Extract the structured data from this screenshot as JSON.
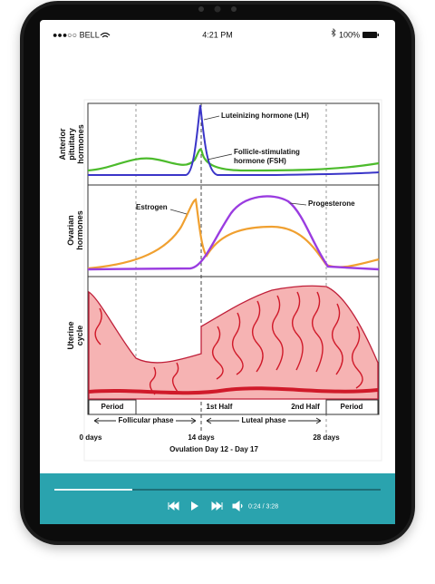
{
  "status_bar": {
    "carrier": "●●●○○ BELL",
    "time": "4:21 PM",
    "battery": "100%"
  },
  "diagram": {
    "row_labels": [
      [
        "Anterior",
        "pituitary",
        "hormones"
      ],
      [
        "Ovarian",
        "hormones"
      ],
      [
        "Uterine",
        "cycle"
      ]
    ],
    "lh_label": "Luteinizing hormone (LH)",
    "fsh_label": [
      "Follicle-stimulating",
      "hormone (FSH)"
    ],
    "estrogen_label": "Estrogen",
    "progesterone_label": "Progesterone",
    "period_labels": [
      "Period",
      "1st Half",
      "2nd Half",
      "Period"
    ],
    "phases": [
      "Follicular phase",
      "Luteal phase"
    ],
    "days": [
      "0 days",
      "14 days",
      "28 days"
    ],
    "caption": "Ovulation Day 12 - Day 17"
  },
  "player": {
    "time": "0:24 / 3:28"
  }
}
